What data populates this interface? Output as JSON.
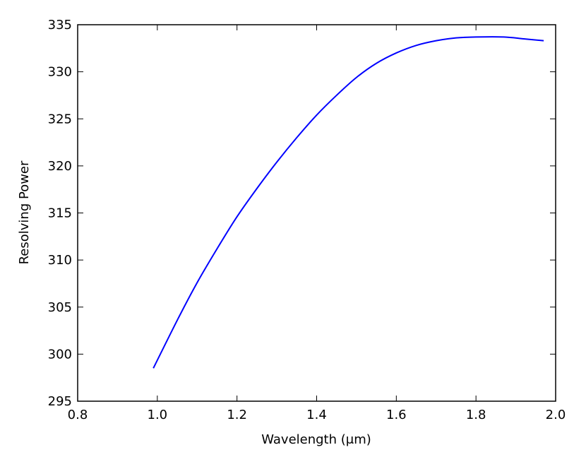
{
  "chart_data": {
    "type": "line",
    "title": "",
    "xlabel": "Wavelength (μm)",
    "ylabel": "Resolving Power",
    "xlim": [
      0.8,
      2.0
    ],
    "ylim": [
      295,
      335
    ],
    "xticks": [
      "0.8",
      "1.0",
      "1.2",
      "1.4",
      "1.6",
      "1.8",
      "2.0"
    ],
    "yticks": [
      "295",
      "300",
      "305",
      "310",
      "315",
      "320",
      "325",
      "330",
      "335"
    ],
    "grid": false,
    "legend": "none",
    "series": [
      {
        "color": "#0000ff",
        "x": [
          0.99,
          1.05,
          1.1,
          1.15,
          1.2,
          1.25,
          1.3,
          1.35,
          1.4,
          1.45,
          1.5,
          1.55,
          1.6,
          1.65,
          1.7,
          1.75,
          1.8,
          1.87,
          1.92,
          1.97
        ],
        "y": [
          298.5,
          303.6,
          307.6,
          311.2,
          314.6,
          317.6,
          320.4,
          323.0,
          325.4,
          327.5,
          329.4,
          330.9,
          332.0,
          332.8,
          333.3,
          333.6,
          333.7,
          333.7,
          333.5,
          333.3
        ]
      }
    ]
  }
}
